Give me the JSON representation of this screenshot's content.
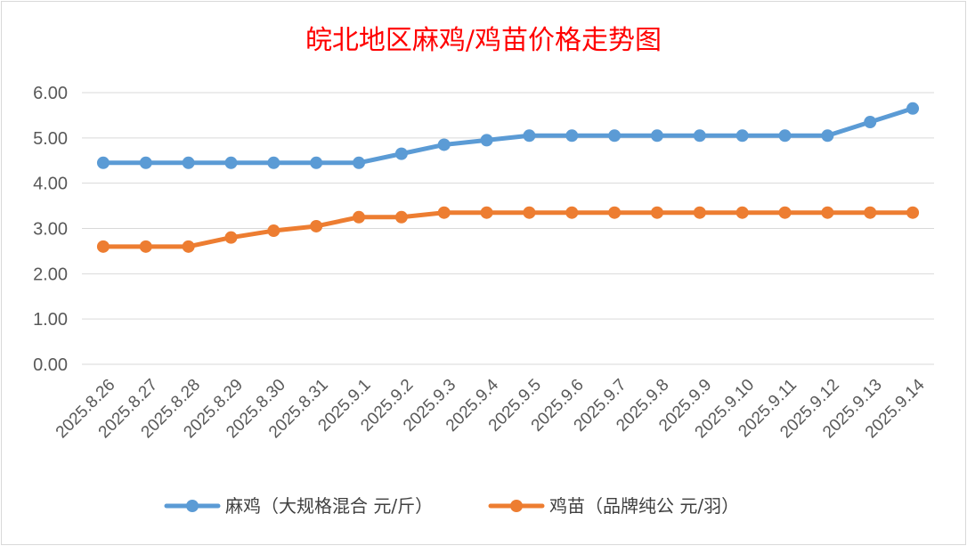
{
  "chart_data": {
    "type": "line",
    "title": "皖北地区麻鸡/鸡苗价格走势图",
    "xlabel": "",
    "ylabel": "",
    "ylim": [
      0,
      6
    ],
    "yticks": [
      "0.00",
      "1.00",
      "2.00",
      "3.00",
      "4.00",
      "5.00",
      "6.00"
    ],
    "grid": true,
    "legend_position": "bottom",
    "categories": [
      "2025.8.26",
      "2025.8.27",
      "2025.8.28",
      "2025.8.29",
      "2025.8.30",
      "2025.8.31",
      "2025.9.1",
      "2025.9.2",
      "2025.9.3",
      "2025.9.4",
      "2025.9.5",
      "2025.9.6",
      "2025.9.7",
      "2025.9.8",
      "2025.9.9",
      "2025.9.10",
      "2025.9.11",
      "2025.9.12",
      "2025.9.13",
      "2025.9.14"
    ],
    "series": [
      {
        "name": "麻鸡（大规格混合 元/斤）",
        "color": "#5b9bd5",
        "values": [
          4.45,
          4.45,
          4.45,
          4.45,
          4.45,
          4.45,
          4.45,
          4.65,
          4.85,
          4.95,
          5.05,
          5.05,
          5.05,
          5.05,
          5.05,
          5.05,
          5.05,
          5.05,
          5.35,
          5.65
        ]
      },
      {
        "name": "鸡苗（品牌纯公 元/羽）",
        "color": "#ed7d31",
        "values": [
          2.6,
          2.6,
          2.6,
          2.8,
          2.95,
          3.05,
          3.25,
          3.25,
          3.35,
          3.35,
          3.35,
          3.35,
          3.35,
          3.35,
          3.35,
          3.35,
          3.35,
          3.35,
          3.35,
          3.35
        ]
      }
    ]
  }
}
